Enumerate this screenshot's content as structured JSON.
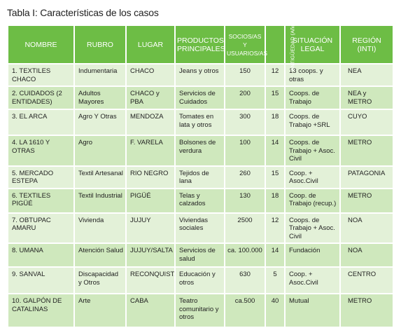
{
  "caption": "Tabla I: Características de los casos",
  "headers": {
    "nombre": "NOMBRE",
    "rubro": "RUBRO",
    "lugar": "LUGAR",
    "productos": "PRODUCTOS PRINCIPALES",
    "socios": "SOCIOS/AS Y USUARIOS/AS",
    "antiguedad": "ANTIGÜEDAD (Años)",
    "situacion": "SITUACIÓN LEGAL",
    "region": "REGIÓN (INTI)"
  },
  "rows": [
    {
      "nombre": "1. TEXTILES CHACO",
      "rubro": "Indumentaria",
      "lugar": "CHACO",
      "productos": "Jeans y otros",
      "socios": "150",
      "antiguedad": "12",
      "situacion": "13 coops. y otras",
      "region": "NEA"
    },
    {
      "nombre": "2. CUIDADOS (2 ENTIDADES)",
      "rubro": "Adultos Mayores",
      "lugar": "CHACO y PBA",
      "productos": "Servicios de Cuidados",
      "socios": "200",
      "antiguedad": "15",
      "situacion": "Coops. de Trabajo",
      "region": "NEA y METRO"
    },
    {
      "nombre": "3. EL ARCA",
      "rubro": "Agro Y Otras",
      "lugar": "MENDOZA",
      "productos": "Tomates en lata y otros",
      "socios": "300",
      "antiguedad": "18",
      "situacion": "Coops. de Trabajo +SRL",
      "region": "CUYO"
    },
    {
      "nombre": "4. LA 1610 Y OTRAS",
      "rubro": "Agro",
      "lugar": "F. VARELA",
      "productos": "Bolsones de verdura",
      "socios": "100",
      "antiguedad": "14",
      "situacion": "Coops. de Trabajo + Asoc. Civil",
      "region": "METRO"
    },
    {
      "nombre": "5. MERCADO ESTEPA",
      "rubro": "Textil Artesanal",
      "lugar": "RIO NEGRO",
      "productos": "Tejidos de lana",
      "socios": "260",
      "antiguedad": "15",
      "situacion": "Coop. + Asoc.Civil",
      "region": "PATAGONIA"
    },
    {
      "nombre": "6. TEXTILES PIGÜÉ",
      "rubro": "Textil Industrial",
      "lugar": "PIGÜÉ",
      "productos": "Telas y calzados",
      "socios": "130",
      "antiguedad": "18",
      "situacion": "Coop. de Trabajo (recup.)",
      "region": "METRO"
    },
    {
      "nombre": "7. OBTUPAC AMARU",
      "rubro": "Vivienda",
      "lugar": "JUJUY",
      "productos": "Viviendas sociales",
      "socios": "2500",
      "antiguedad": "12",
      "situacion": "Coops. de Trabajo + Asoc. Civil",
      "region": "NOA"
    },
    {
      "nombre": "8. UMANA",
      "rubro": "Atención Salud",
      "lugar": "JUJUY/SALTA",
      "productos": "Servicios de salud",
      "socios": "ca. 100.000",
      "antiguedad": "14",
      "situacion": "Fundación",
      "region": "NOA"
    },
    {
      "nombre": "9. SANVAL",
      "rubro": "Discapacidad y Otros",
      "lugar": "RECONQUISTA",
      "productos": "Educación y otros",
      "socios": "630",
      "antiguedad": "5",
      "situacion": "Coop. + Asoc.Civil",
      "region": "CENTRO"
    },
    {
      "nombre": "10. GALPÓN DE CATALINAS",
      "rubro": "Arte",
      "lugar": "CABA",
      "productos": "Teatro comunitario y otros",
      "socios": "ca.500",
      "antiguedad": "40",
      "situacion": "Mutual",
      "region": "METRO"
    }
  ]
}
